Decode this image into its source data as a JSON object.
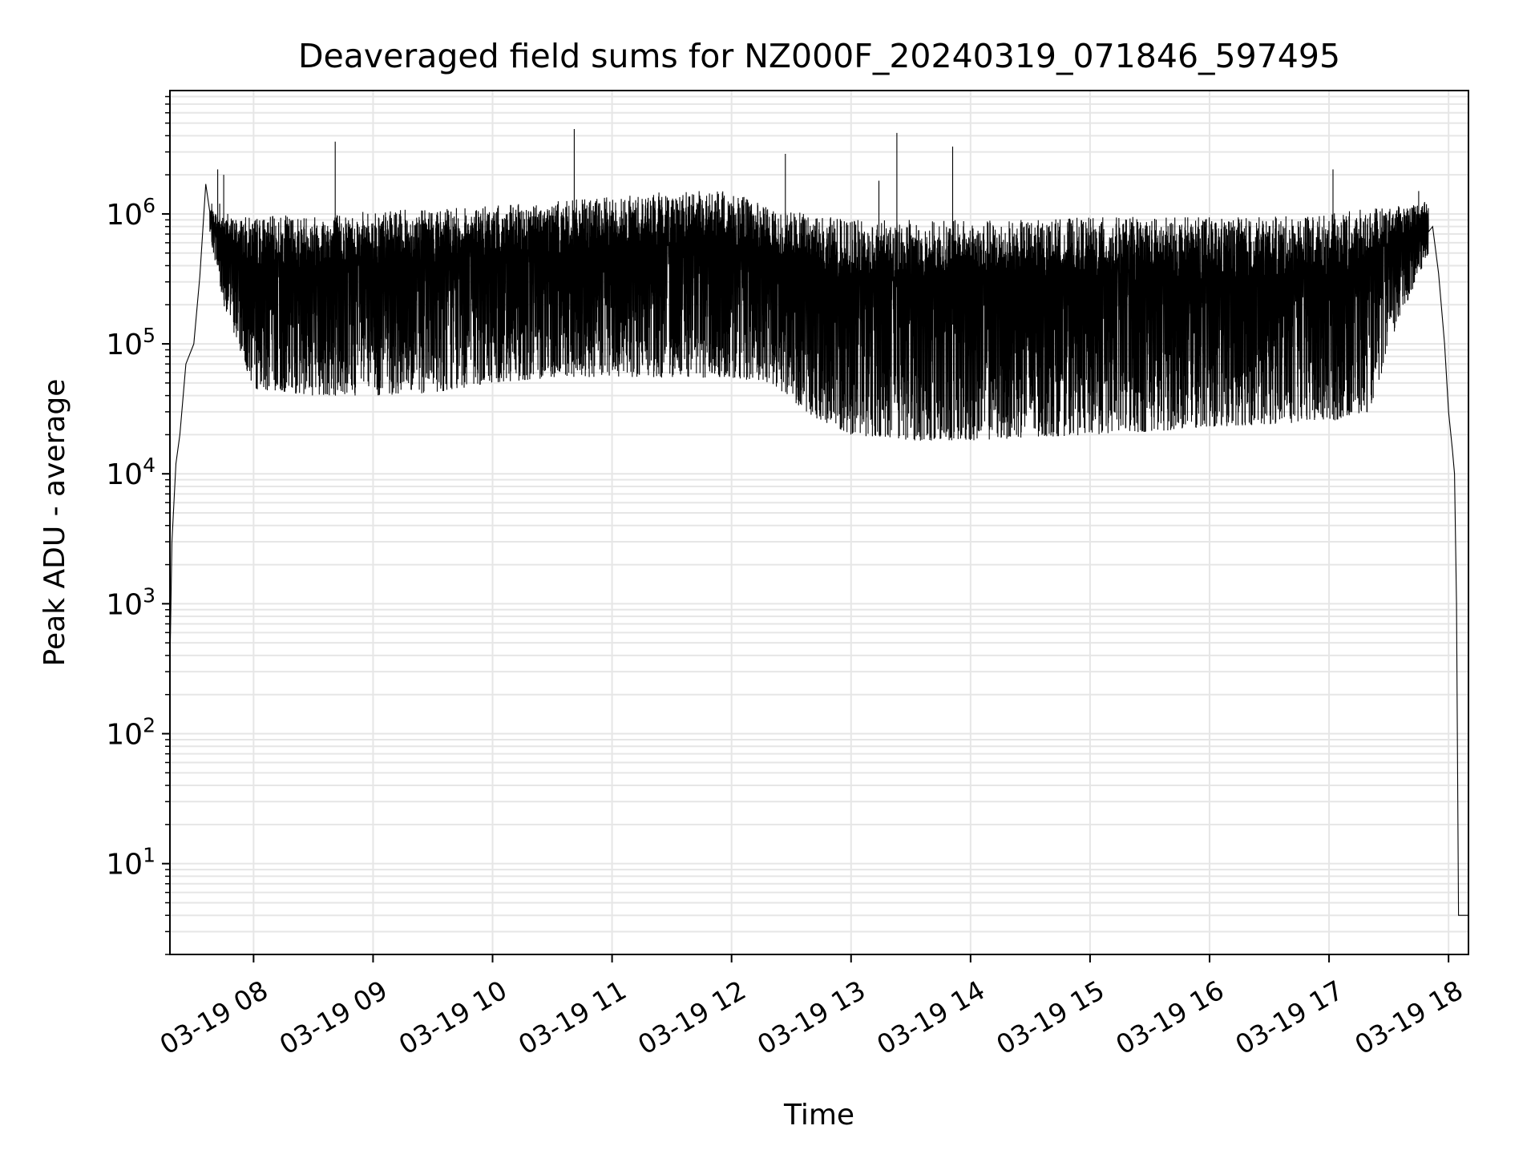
{
  "chart_data": {
    "type": "line",
    "title": "Deaveraged field sums for NZ000F_20240319_071846_597495",
    "xlabel": "Time",
    "ylabel": "Peak ADU - average",
    "yscale": "log",
    "ylim": [
      2,
      8900000
    ],
    "xlim": [
      "2024-03-19 07:18",
      "2024-03-19 18:10"
    ],
    "grid": true,
    "x_tick_labels": [
      "03-19 08",
      "03-19 09",
      "03-19 10",
      "03-19 11",
      "03-19 12",
      "03-19 13",
      "03-19 14",
      "03-19 15",
      "03-19 16",
      "03-19 17",
      "03-19 18"
    ],
    "x_ticks": [
      "2024-03-19 08:00",
      "2024-03-19 09:00",
      "2024-03-19 10:00",
      "2024-03-19 11:00",
      "2024-03-19 12:00",
      "2024-03-19 13:00",
      "2024-03-19 14:00",
      "2024-03-19 15:00",
      "2024-03-19 16:00",
      "2024-03-19 17:00",
      "2024-03-19 18:00"
    ],
    "y_ticks": [
      {
        "value": 10,
        "base": "10",
        "exp": "1"
      },
      {
        "value": 100,
        "base": "10",
        "exp": "2"
      },
      {
        "value": 1000,
        "base": "10",
        "exp": "3"
      },
      {
        "value": 10000,
        "base": "10",
        "exp": "4"
      },
      {
        "value": 100000,
        "base": "10",
        "exp": "5"
      },
      {
        "value": 1000000,
        "base": "10",
        "exp": "6"
      }
    ],
    "series": [
      {
        "color": "#000000",
        "envelope": {
          "x": [
            "2024-03-19 07:38",
            "2024-03-19 07:45",
            "2024-03-19 08:00",
            "2024-03-19 08:30",
            "2024-03-19 09:00",
            "2024-03-19 09:30",
            "2024-03-19 10:00",
            "2024-03-19 10:30",
            "2024-03-19 11:00",
            "2024-03-19 11:30",
            "2024-03-19 12:00",
            "2024-03-19 12:20",
            "2024-03-19 12:40",
            "2024-03-19 13:00",
            "2024-03-19 13:30",
            "2024-03-19 14:00",
            "2024-03-19 14:30",
            "2024-03-19 15:00",
            "2024-03-19 15:30",
            "2024-03-19 16:00",
            "2024-03-19 16:30",
            "2024-03-19 17:00",
            "2024-03-19 17:20",
            "2024-03-19 17:35",
            "2024-03-19 17:50"
          ],
          "high": [
            1100000,
            950000,
            950000,
            1000000,
            1050000,
            1100000,
            1150000,
            1250000,
            1350000,
            1500000,
            1500000,
            1100000,
            1000000,
            900000,
            900000,
            900000,
            900000,
            950000,
            950000,
            950000,
            950000,
            1000000,
            1100000,
            1150000,
            1250000
          ],
          "low": [
            700000,
            200000,
            45000,
            40000,
            40000,
            42000,
            50000,
            55000,
            55000,
            55000,
            55000,
            50000,
            28000,
            20000,
            18000,
            18000,
            19000,
            20000,
            21000,
            23000,
            24000,
            25000,
            30000,
            150000,
            500000
          ]
        },
        "x": [
          "2024-03-19 07:18",
          "2024-03-19 07:19",
          "2024-03-19 07:21",
          "2024-03-19 07:23",
          "2024-03-19 07:26",
          "2024-03-19 07:30",
          "2024-03-19 07:33",
          "2024-03-19 07:36",
          "2024-03-19 07:39",
          "2024-03-19 07:42",
          "2024-03-19 07:43",
          "2024-03-19 07:45",
          "2024-03-19 07:47",
          "2024-03-19 08:41",
          "2024-03-19 10:41",
          "2024-03-19 12:27",
          "2024-03-19 13:14",
          "2024-03-19 13:23",
          "2024-03-19 13:51",
          "2024-03-19 17:02",
          "2024-03-19 17:45",
          "2024-03-19 17:48",
          "2024-03-19 17:52",
          "2024-03-19 17:55",
          "2024-03-19 17:58",
          "2024-03-19 18:00",
          "2024-03-19 18:02",
          "2024-03-19 18:03",
          "2024-03-19 18:04",
          "2024-03-19 18:05",
          "2024-03-19 18:10"
        ],
        "y": [
          330,
          3000,
          12000,
          20000,
          70000,
          100000,
          330000,
          1700000,
          1200000,
          2200000,
          1200000,
          2000000,
          1000000,
          3600000,
          4500000,
          2900000,
          1800000,
          4200000,
          3300000,
          2200000,
          1500000,
          1200000,
          800000,
          350000,
          100000,
          30000,
          15000,
          10000,
          1000,
          4,
          4
        ]
      }
    ]
  }
}
